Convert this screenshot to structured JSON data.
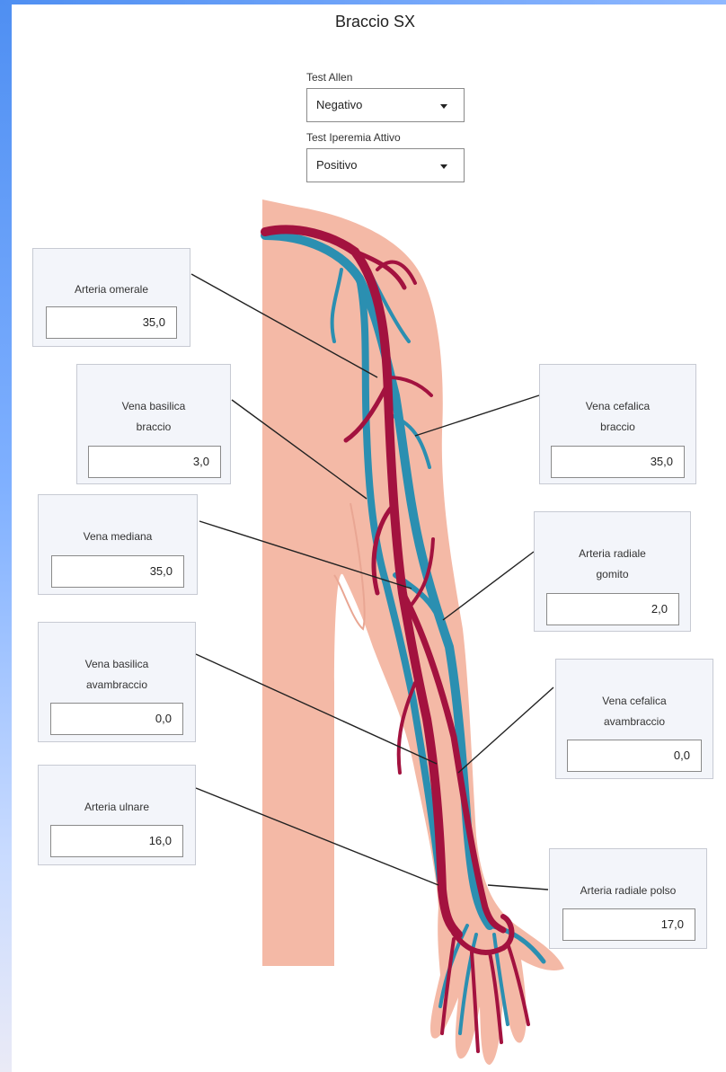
{
  "title": "Braccio SX",
  "selects": {
    "allen": {
      "label": "Test Allen",
      "value": "Negativo"
    },
    "iperemia": {
      "label": "Test Iperemia Attivo",
      "value": "Positivo"
    }
  },
  "fields": {
    "arteria_omerale": {
      "label": "Arteria omerale",
      "value": "35,0"
    },
    "vena_basilica_braccio": {
      "label1": "Vena basilica",
      "label2": "braccio",
      "value": "3,0"
    },
    "vena_cefalica_braccio": {
      "label1": "Vena cefalica",
      "label2": "braccio",
      "value": "35,0"
    },
    "vena_mediana": {
      "label": "Vena mediana",
      "value": "35,0"
    },
    "arteria_radiale_gomito": {
      "label1": "Arteria radiale",
      "label2": "gomito",
      "value": "2,0"
    },
    "vena_basilica_avambraccio": {
      "label1": "Vena basilica",
      "label2": "avambraccio",
      "value": "0,0"
    },
    "vena_cefalica_avambraccio": {
      "label1": "Vena cefalica",
      "label2": "avambraccio",
      "value": "0,0"
    },
    "arteria_ulnare": {
      "label": "Arteria ulnare",
      "value": "16,0"
    },
    "arteria_radiale_polso": {
      "label": "Arteria radiale polso",
      "value": "17,0"
    }
  },
  "colors": {
    "skin": "#f4b9a6",
    "artery": "#a3123f",
    "vein": "#2b8fb1",
    "card_bg": "#f3f5fa",
    "accent": "#4f8ff2"
  },
  "icons": {
    "dropdown": "caret-down-icon"
  }
}
